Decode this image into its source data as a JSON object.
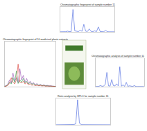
{
  "chart_data": [
    {
      "type": "line",
      "title": "Chromatographic fingerprint of sample number 11",
      "x": [
        0,
        2,
        4,
        6,
        8,
        10,
        12,
        14,
        16,
        18,
        20,
        22,
        24,
        26,
        28,
        30,
        32,
        34,
        36,
        38,
        40,
        42,
        44,
        46,
        48,
        50,
        52,
        54,
        56,
        58,
        60
      ],
      "values": [
        5,
        5,
        6,
        8,
        30,
        10,
        12,
        900,
        40,
        20,
        15,
        60,
        25,
        300,
        30,
        18,
        120,
        20,
        15,
        40,
        12,
        200,
        15,
        10,
        8,
        60,
        6,
        5,
        5,
        4,
        4
      ],
      "color": "#3b5bdb",
      "xlim": [
        0,
        60
      ],
      "ylim": [
        0,
        1000
      ],
      "tick_labels": false
    },
    {
      "type": "line",
      "title": "Chromatographic fingerprint of 10 medicinal plants extracts",
      "x": [
        0,
        2,
        4,
        6,
        8,
        10,
        12,
        14,
        16,
        18,
        20,
        22,
        24,
        26,
        28,
        30,
        32,
        34,
        36,
        38,
        40,
        42,
        44,
        46,
        48,
        50,
        52,
        54,
        56,
        58,
        60
      ],
      "series": [
        {
          "color": "#8e44ad",
          "values": [
            10,
            20,
            60,
            150,
            80,
            300,
            120,
            200,
            90,
            400,
            150,
            250,
            100,
            180,
            70,
            120,
            60,
            90,
            40,
            70,
            30,
            50,
            25,
            40,
            20,
            30,
            15,
            20,
            12,
            10,
            8
          ]
        },
        {
          "color": "#2e9e44",
          "values": [
            8,
            15,
            40,
            100,
            60,
            200,
            90,
            350,
            70,
            150,
            100,
            180,
            80,
            120,
            60,
            90,
            50,
            70,
            30,
            50,
            25,
            40,
            20,
            30,
            15,
            20,
            12,
            15,
            10,
            8,
            6
          ]
        },
        {
          "color": "#d9342b",
          "values": [
            5,
            10,
            30,
            80,
            200,
            100,
            60,
            150,
            500,
            100,
            80,
            120,
            60,
            90,
            40,
            60,
            30,
            40,
            25,
            30,
            20,
            25,
            15,
            20,
            12,
            15,
            10,
            12,
            8,
            6,
            5
          ]
        }
      ],
      "xlim": [
        0,
        60
      ],
      "ylim": [
        0,
        1000
      ],
      "tick_labels": false
    },
    {
      "type": "line",
      "title": "Chromatographic analysis of sample number 11",
      "x": [
        0,
        2,
        4,
        6,
        8,
        10,
        12,
        14,
        16,
        18,
        20,
        22,
        24,
        26,
        28,
        30,
        32,
        34,
        36,
        38,
        40,
        42,
        44,
        46,
        48,
        50,
        52,
        54,
        56,
        58,
        60
      ],
      "values": [
        5,
        6,
        10,
        40,
        15,
        20,
        80,
        500,
        30,
        20,
        250,
        40,
        25,
        100,
        30,
        700,
        20,
        60,
        15,
        150,
        12,
        30,
        10,
        8,
        40,
        6,
        5,
        5,
        4,
        4,
        4
      ],
      "color": "#3b5bdb",
      "xlim": [
        0,
        60
      ],
      "ylim": [
        0,
        1000
      ],
      "tick_labels": false
    },
    {
      "type": "line",
      "title": "Rutin analysis by HPLC for sample number 11",
      "x": [
        0,
        2,
        4,
        6,
        8,
        10,
        12,
        14,
        16,
        18,
        20,
        22,
        24,
        26,
        28,
        30,
        32,
        34,
        36,
        38,
        40,
        42,
        44,
        46,
        48,
        50,
        52,
        54,
        56,
        58,
        60
      ],
      "values": [
        2,
        2,
        3,
        3,
        4,
        4,
        5,
        5,
        6,
        8,
        12,
        40,
        950,
        60,
        10,
        6,
        5,
        4,
        4,
        3,
        3,
        3,
        3,
        2,
        2,
        2,
        2,
        2,
        2,
        2,
        2
      ],
      "color": "#3b5bdb",
      "xlim": [
        0,
        60
      ],
      "ylim": [
        0,
        1000
      ],
      "tick_labels": false
    }
  ]
}
